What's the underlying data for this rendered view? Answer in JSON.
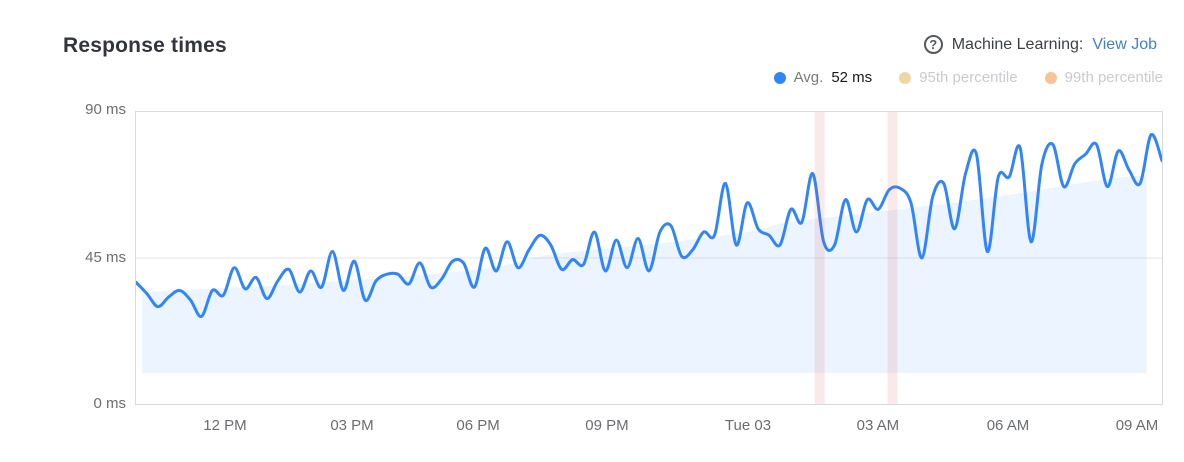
{
  "header": {
    "title": "Response times"
  },
  "ml": {
    "icon": "question-mark-icon",
    "label": "Machine Learning:",
    "link_label": "View Job",
    "link_color": "#4083c8"
  },
  "legend": {
    "items": [
      {
        "label": "Avg.",
        "value": "52 ms",
        "color": "#3185fc",
        "active": true
      },
      {
        "label": "95th percentile",
        "value": "",
        "color": "#eed7a4",
        "active": false
      },
      {
        "label": "99th percentile",
        "value": "",
        "color": "#f6c496",
        "active": false
      }
    ]
  },
  "chart_data": {
    "type": "line",
    "title": "Response times",
    "ylabel": "ms",
    "ylim": [
      0,
      90
    ],
    "grid": "horizontal",
    "legend_position": "top-right",
    "y_ticks": [
      {
        "value": 90,
        "label": "90 ms"
      },
      {
        "value": 45,
        "label": "45 ms"
      },
      {
        "value": 0,
        "label": "0 ms"
      }
    ],
    "x_ticks": [
      {
        "label": "12 PM",
        "f": 0.0875
      },
      {
        "label": "03 PM",
        "f": 0.2111
      },
      {
        "label": "06 PM",
        "f": 0.3337
      },
      {
        "label": "09 PM",
        "f": 0.4591
      },
      {
        "label": "Tue 03",
        "f": 0.5963
      },
      {
        "label": "03 AM",
        "f": 0.7227
      },
      {
        "label": "06 AM",
        "f": 0.8492
      },
      {
        "label": "09 AM",
        "f": 0.9747
      }
    ],
    "series": [
      {
        "name": "Avg.",
        "summary_value_ms": 52,
        "color": "#3185fc",
        "start_time": "10:00 AM",
        "interval_minutes": 15,
        "unit": "ms",
        "values": [
          37.5,
          34,
          30,
          33,
          35,
          32,
          27,
          35,
          33.5,
          42,
          35.5,
          39,
          32.5,
          38,
          41.5,
          34.5,
          41,
          36,
          47,
          35,
          44,
          32,
          38,
          40,
          40,
          37,
          43.5,
          36,
          38.5,
          44,
          43.5,
          36,
          48,
          41,
          50,
          42,
          47.5,
          52,
          49,
          41.5,
          44.5,
          43,
          53,
          41,
          50.5,
          42,
          51,
          41,
          53,
          55,
          45.5,
          47.5,
          53,
          52,
          68,
          49,
          62,
          54,
          52,
          49,
          60,
          56,
          71,
          50,
          49,
          63,
          53,
          63,
          60,
          66,
          66.5,
          62,
          45,
          64,
          68,
          54,
          71,
          77,
          47,
          70,
          70,
          79,
          50,
          74,
          80,
          67,
          74,
          77,
          80,
          67,
          78,
          72,
          68,
          83,
          75
        ]
      }
    ],
    "expected_bounds": {
      "name": "ML expected range",
      "fill": "rgba(49,133,252,0.09)",
      "lower_ms": 9.5,
      "upper_points": [
        {
          "f": 0.006,
          "v": 34.5
        },
        {
          "f": 0.16,
          "v": 37
        },
        {
          "f": 0.334,
          "v": 41.5
        },
        {
          "f": 0.404,
          "v": 46
        },
        {
          "f": 0.511,
          "v": 49.5
        },
        {
          "f": 0.596,
          "v": 53
        },
        {
          "f": 0.637,
          "v": 56
        },
        {
          "f": 0.744,
          "v": 60
        },
        {
          "f": 0.841,
          "v": 64
        },
        {
          "f": 0.939,
          "v": 69
        },
        {
          "f": 0.985,
          "v": 70.5
        }
      ]
    },
    "anomaly_bands": [
      {
        "f_start": 0.6615,
        "f_end": 0.6712,
        "approx_time": "01:40 AM"
      },
      {
        "f_start": 0.7325,
        "f_end": 0.7422,
        "approx_time": "03:20 AM"
      }
    ],
    "anomaly_band_fill": "rgba(214,85,85,0.13)",
    "gridline_color": "#e4e5e8"
  }
}
